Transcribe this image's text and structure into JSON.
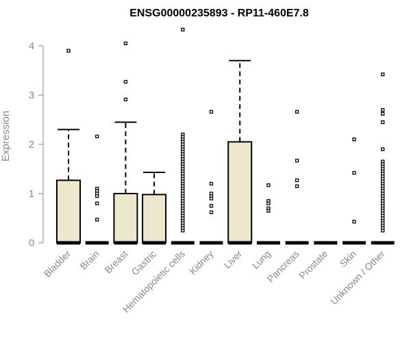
{
  "chart_data": {
    "type": "box",
    "title": "ENSG00000235893 - RP11-460E7.8",
    "ylabel": "Expression",
    "xlabel": "",
    "ylim": [
      0,
      4.4
    ],
    "yticks": [
      0,
      1,
      2,
      3,
      4
    ],
    "grid": false,
    "legend": "none",
    "categories": [
      "Bladder",
      "Brain",
      "Breast",
      "Gastric",
      "Hematopoietic cells",
      "Kidney",
      "Liver",
      "Lung",
      "Pancreas",
      "Prostate",
      "Skin",
      "Unknown / Other"
    ],
    "boxes": [
      {
        "q1": 0,
        "median": 0,
        "q3": 1.27,
        "whisker_low": 0,
        "whisker_high": 2.3,
        "outliers": [
          3.9
        ]
      },
      {
        "q1": 0,
        "median": 0,
        "q3": 0,
        "whisker_low": 0,
        "whisker_high": 0,
        "outliers": [
          2.16,
          1.1,
          1.05,
          1.0,
          0.95,
          0.8,
          0.47
        ]
      },
      {
        "q1": 0,
        "median": 0,
        "q3": 1.0,
        "whisker_low": 0,
        "whisker_high": 2.45,
        "outliers": [
          4.05,
          3.27,
          2.91
        ]
      },
      {
        "q1": 0,
        "median": 0,
        "q3": 0.98,
        "whisker_low": 0,
        "whisker_high": 1.43,
        "outliers": []
      },
      {
        "q1": 0,
        "median": 0,
        "q3": 0,
        "whisker_low": 0,
        "whisker_high": 0,
        "outliers": [
          4.33,
          2.2,
          2.15,
          2.1,
          2.05,
          2.0,
          1.95,
          1.9,
          1.85,
          1.8,
          1.75,
          1.7,
          1.65,
          1.6,
          1.55,
          1.5,
          1.45,
          1.4,
          1.35,
          1.3,
          1.25,
          1.2,
          1.15,
          1.1,
          1.05,
          1.0,
          0.95,
          0.9,
          0.85,
          0.8,
          0.75,
          0.7,
          0.65,
          0.6,
          0.55,
          0.5,
          0.45,
          0.4,
          0.35,
          0.3,
          0.25
        ]
      },
      {
        "q1": 0,
        "median": 0,
        "q3": 0,
        "whisker_low": 0,
        "whisker_high": 0,
        "outliers": [
          2.66,
          1.2,
          1.0,
          0.95,
          0.9,
          0.75,
          0.62
        ]
      },
      {
        "q1": 0,
        "median": 0,
        "q3": 2.05,
        "whisker_low": 0,
        "whisker_high": 3.7,
        "outliers": []
      },
      {
        "q1": 0,
        "median": 0,
        "q3": 0,
        "whisker_low": 0,
        "whisker_high": 0,
        "outliers": [
          1.17,
          0.85,
          0.8,
          0.7,
          0.65
        ]
      },
      {
        "q1": 0,
        "median": 0,
        "q3": 0,
        "whisker_low": 0,
        "whisker_high": 0,
        "outliers": [
          2.66,
          1.67,
          1.27,
          1.15
        ]
      },
      {
        "q1": 0,
        "median": 0,
        "q3": 0,
        "whisker_low": 0,
        "whisker_high": 0,
        "outliers": []
      },
      {
        "q1": 0,
        "median": 0,
        "q3": 0,
        "whisker_low": 0,
        "whisker_high": 0,
        "outliers": [
          2.1,
          1.42,
          0.43
        ]
      },
      {
        "q1": 0,
        "median": 0,
        "q3": 0,
        "whisker_low": 0,
        "whisker_high": 0,
        "outliers": [
          3.42,
          2.7,
          2.62,
          2.45,
          1.9,
          1.65,
          1.6,
          1.55,
          1.5,
          1.45,
          1.4,
          1.35,
          1.3,
          1.25,
          1.2,
          1.15,
          1.1,
          1.05,
          1.0,
          0.95,
          0.9,
          0.85,
          0.8,
          0.75,
          0.7,
          0.65,
          0.6,
          0.55,
          0.5,
          0.45,
          0.4,
          0.35,
          0.3,
          0.25
        ]
      }
    ],
    "colors": {
      "box_fill": "#ede8cc",
      "box_stroke": "#000000",
      "axis": "#888888",
      "tick_text": "#888888",
      "title": "#000000"
    }
  }
}
